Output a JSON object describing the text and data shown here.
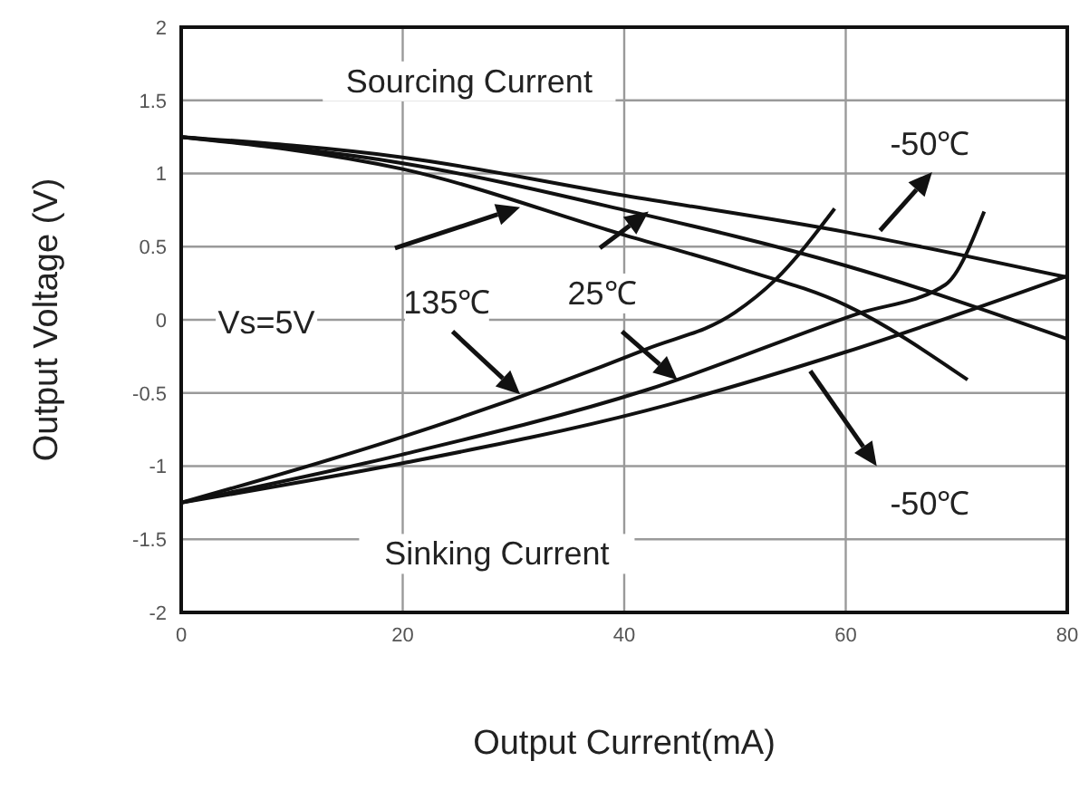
{
  "chart_data": {
    "type": "line",
    "xlabel": "Output Current(mA)",
    "ylabel": "Output Voltage (V)",
    "xlim": [
      0,
      80
    ],
    "ylim": [
      -2,
      2
    ],
    "xticks": [
      0,
      20,
      40,
      60,
      80
    ],
    "yticks": [
      -2,
      -1.5,
      -1,
      -0.5,
      0,
      0.5,
      1,
      1.5,
      2
    ],
    "grid": true,
    "series": [
      {
        "color": "#111111",
        "x": [
          0,
          20,
          40,
          60,
          80
        ],
        "values": [
          1.25,
          1.11,
          0.85,
          0.6,
          0.29
        ]
      },
      {
        "color": "#111111",
        "x": [
          0,
          20,
          40,
          60,
          80
        ],
        "values": [
          1.25,
          1.07,
          0.75,
          0.37,
          -0.13
        ]
      },
      {
        "color": "#111111",
        "x": [
          0,
          20,
          40,
          50,
          60,
          71
        ],
        "values": [
          1.25,
          1.03,
          0.58,
          0.36,
          0.1,
          -0.41
        ]
      },
      {
        "color": "#111111",
        "x": [
          0,
          20,
          42,
          50,
          53.6,
          59
        ],
        "values": [
          -1.25,
          -0.8,
          -0.2,
          0.05,
          0.27,
          0.76
        ]
      },
      {
        "color": "#111111",
        "x": [
          0,
          20,
          42,
          61,
          69,
          72.5
        ],
        "values": [
          -1.25,
          -0.92,
          -0.48,
          0.04,
          0.24,
          0.74
        ]
      },
      {
        "color": "#111111",
        "x": [
          0,
          20,
          42,
          60,
          80
        ],
        "values": [
          -1.25,
          -0.98,
          -0.62,
          -0.22,
          0.3
        ]
      }
    ],
    "annotations": [
      "Sourcing Current",
      "Sinking Current",
      "Vs=5V",
      "135℃",
      "25℃",
      "-50℃",
      "-50℃"
    ]
  }
}
